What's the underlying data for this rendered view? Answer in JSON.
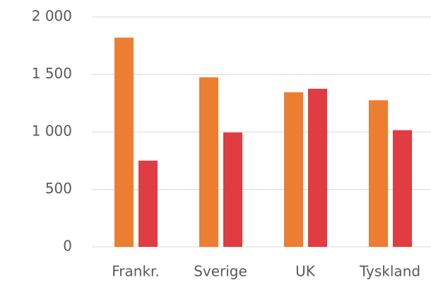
{
  "chart_data": {
    "type": "bar",
    "categories": [
      "Frankr.",
      "Sverige",
      "UK",
      "Tyskland"
    ],
    "series": [
      {
        "color": "#ed7d31",
        "values": [
          1820,
          1475,
          1345,
          1275
        ]
      },
      {
        "color": "#e03c41",
        "values": [
          750,
          995,
          1375,
          1015
        ]
      }
    ],
    "ylim": [
      0,
      2000
    ],
    "yticks": [
      0,
      500,
      {
        "value": 1000,
        "label": "1 000"
      },
      {
        "value": 1500,
        "label": "1 500"
      },
      {
        "value": 2000,
        "label": "2 000"
      }
    ],
    "grid": true
  }
}
